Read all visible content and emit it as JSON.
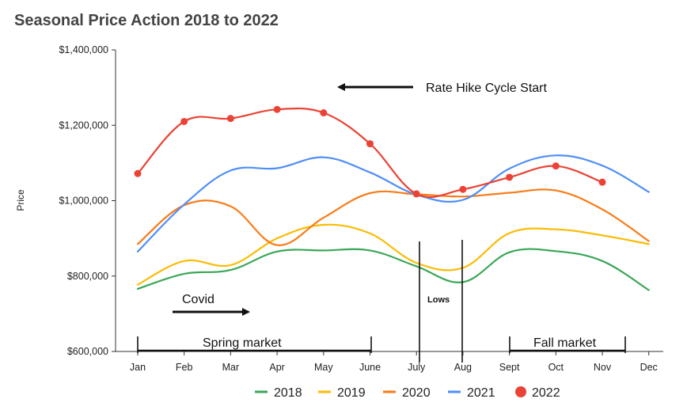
{
  "chart_data": {
    "type": "line",
    "title": "Seasonal Price Action 2018 to 2022",
    "xlabel": "",
    "ylabel": "Price",
    "categories": [
      "Jan",
      "Feb",
      "Mar",
      "Apr",
      "May",
      "June",
      "July",
      "Aug",
      "Sept",
      "Oct",
      "Nov",
      "Dec"
    ],
    "ylim": [
      600000,
      1400000
    ],
    "yticks": [
      600000,
      800000,
      1000000,
      1200000,
      1400000
    ],
    "ytick_labels": [
      "$600,000",
      "$800,000",
      "$1,000,000",
      "$1,200,000",
      "$1,400,000"
    ],
    "grid": false,
    "legend_position": "bottom",
    "series": [
      {
        "name": "2018",
        "color": "#3aa757",
        "style": "line",
        "values": [
          766000,
          806000,
          816000,
          865000,
          868000,
          868000,
          826000,
          784000,
          863000,
          866000,
          840000,
          763000
        ]
      },
      {
        "name": "2019",
        "color": "#fbbc05",
        "style": "line",
        "values": [
          777000,
          840000,
          829000,
          900000,
          936000,
          913000,
          835000,
          822000,
          914000,
          924000,
          908000,
          885000
        ]
      },
      {
        "name": "2020",
        "color": "#fa7b17",
        "style": "line",
        "values": [
          885000,
          988000,
          985000,
          882000,
          955000,
          1020000,
          1017000,
          1011000,
          1021000,
          1027000,
          977000,
          893000
        ]
      },
      {
        "name": "2021",
        "color": "#4f8ef7",
        "style": "line",
        "values": [
          865000,
          990000,
          1080000,
          1086000,
          1115000,
          1075000,
          1016000,
          1002000,
          1085000,
          1120000,
          1093000,
          1023000
        ]
      },
      {
        "name": "2022",
        "color": "#ea4335",
        "style": "line-markers",
        "values": [
          1072000,
          1210000,
          1218000,
          1242000,
          1233000,
          1151000,
          1018000,
          1030000,
          1062000,
          1092000,
          1049000,
          null
        ]
      }
    ],
    "annotations": {
      "rate_hike": "Rate Hike Cycle Start",
      "covid": "Covid",
      "spring": "Spring market",
      "fall": "Fall market",
      "lows": "Lows"
    }
  }
}
